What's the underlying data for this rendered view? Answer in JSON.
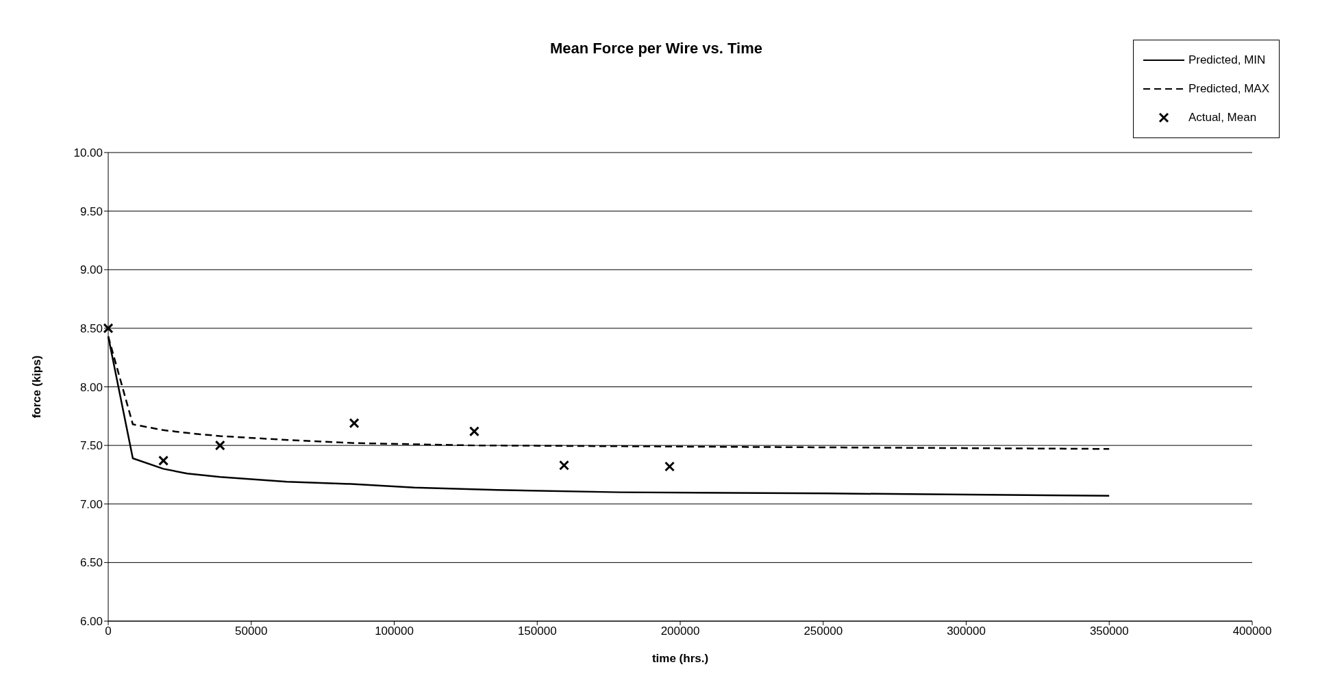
{
  "chart_data": {
    "type": "line",
    "title": "Mean Force per Wire vs. Time",
    "xlabel": "time (hrs.)",
    "ylabel": "force (kips)",
    "xlim": [
      0,
      400000
    ],
    "xticks": [
      0,
      50000,
      100000,
      150000,
      200000,
      250000,
      300000,
      350000,
      400000
    ],
    "ylim": [
      6,
      10
    ],
    "yticks": [
      {
        "value": 6,
        "label": "6.00"
      },
      {
        "value": 6.5,
        "label": "6.50"
      },
      {
        "value": 7,
        "label": "7.00"
      },
      {
        "value": 7.5,
        "label": "7.50"
      },
      {
        "value": 8,
        "label": "8.00"
      },
      {
        "value": 8.5,
        "label": "8.50"
      },
      {
        "value": 9,
        "label": "9.00"
      },
      {
        "value": 9.5,
        "label": "9.50"
      },
      {
        "value": 10,
        "label": "10.00"
      }
    ],
    "grid": "y",
    "legend": "top right",
    "marker": "none",
    "series": [
      {
        "name": "Predicted, MIN",
        "color": "#000000",
        "line_style": "solid",
        "x": [
          0,
          8600,
          19300,
          27600,
          39100,
          62500,
          86000,
          107000,
          136000,
          179000,
          251000,
          350000
        ],
        "values": [
          8.43,
          7.39,
          7.3,
          7.26,
          7.23,
          7.19,
          7.17,
          7.14,
          7.12,
          7.1,
          7.09,
          7.07
        ]
      },
      {
        "name": "Predicted, MAX",
        "color": "#000000",
        "line_style": "dashed",
        "x": [
          0,
          8600,
          19300,
          30000,
          39100,
          60000,
          86000,
          128000,
          200000,
          350000
        ],
        "values": [
          8.43,
          7.68,
          7.63,
          7.6,
          7.58,
          7.55,
          7.52,
          7.5,
          7.49,
          7.47
        ]
      },
      {
        "name": "Actual, Mean",
        "type": "scatter",
        "color": "#000000",
        "marker": "cross",
        "x": [
          0,
          19300,
          39100,
          86000,
          128000,
          159400,
          196300
        ],
        "values": [
          8.5,
          7.37,
          7.5,
          7.69,
          7.62,
          7.33,
          7.32
        ]
      }
    ]
  }
}
